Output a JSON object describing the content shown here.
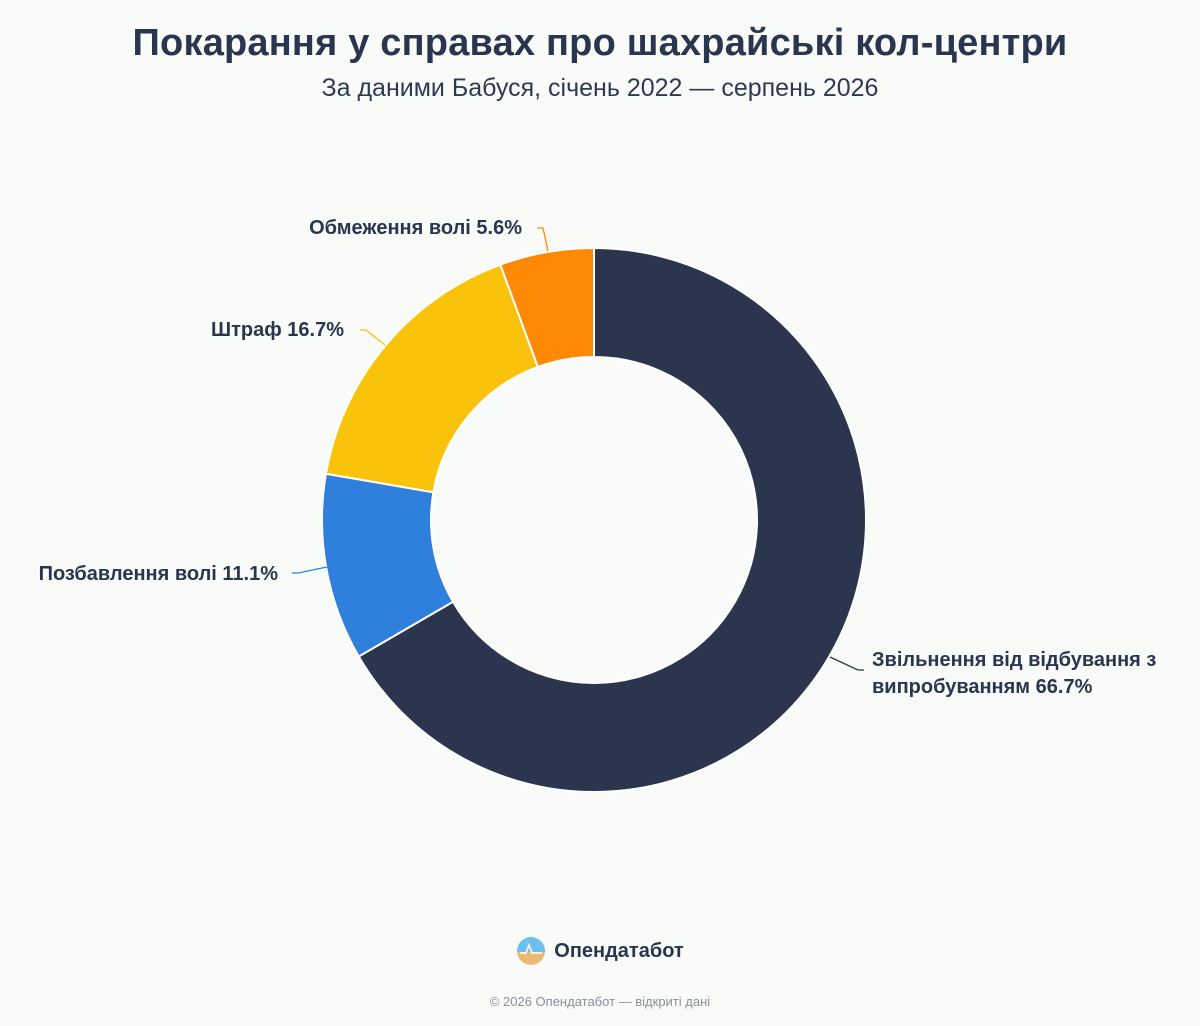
{
  "header": {
    "title": "Покарання у справах про шахрайські кол-центри",
    "subtitle": "За даними Бабуся, січень 2022 — серпень 2026"
  },
  "chart_data": {
    "type": "pie",
    "donut": true,
    "title": "Покарання у справах про шахрайські кол-центри",
    "subtitle": "За даними Бабуся, січень 2022 — серпень 2026",
    "categories": [
      "Звільнення від відбування з випробуванням",
      "Позбавлення волі",
      "Штраф",
      "Обмеження волі"
    ],
    "values": [
      66.7,
      11.1,
      16.7,
      5.6
    ],
    "colors": [
      "#2b354d",
      "#2f80dc",
      "#fac30b",
      "#fd8905"
    ],
    "labels": [
      [
        "Звільнення від відбування з",
        "випробуванням 66.7%"
      ],
      [
        "Позбавлення волі 11.1%"
      ],
      [
        "Штраф 16.7%"
      ],
      [
        "Обмеження волі 5.6%"
      ]
    ],
    "legend": "none"
  },
  "footer": {
    "brand": "Опендатабот",
    "logo_icon": "opendatabot-logo-icon",
    "copyright": "© 2026 Опендатабот — відкриті дані"
  }
}
